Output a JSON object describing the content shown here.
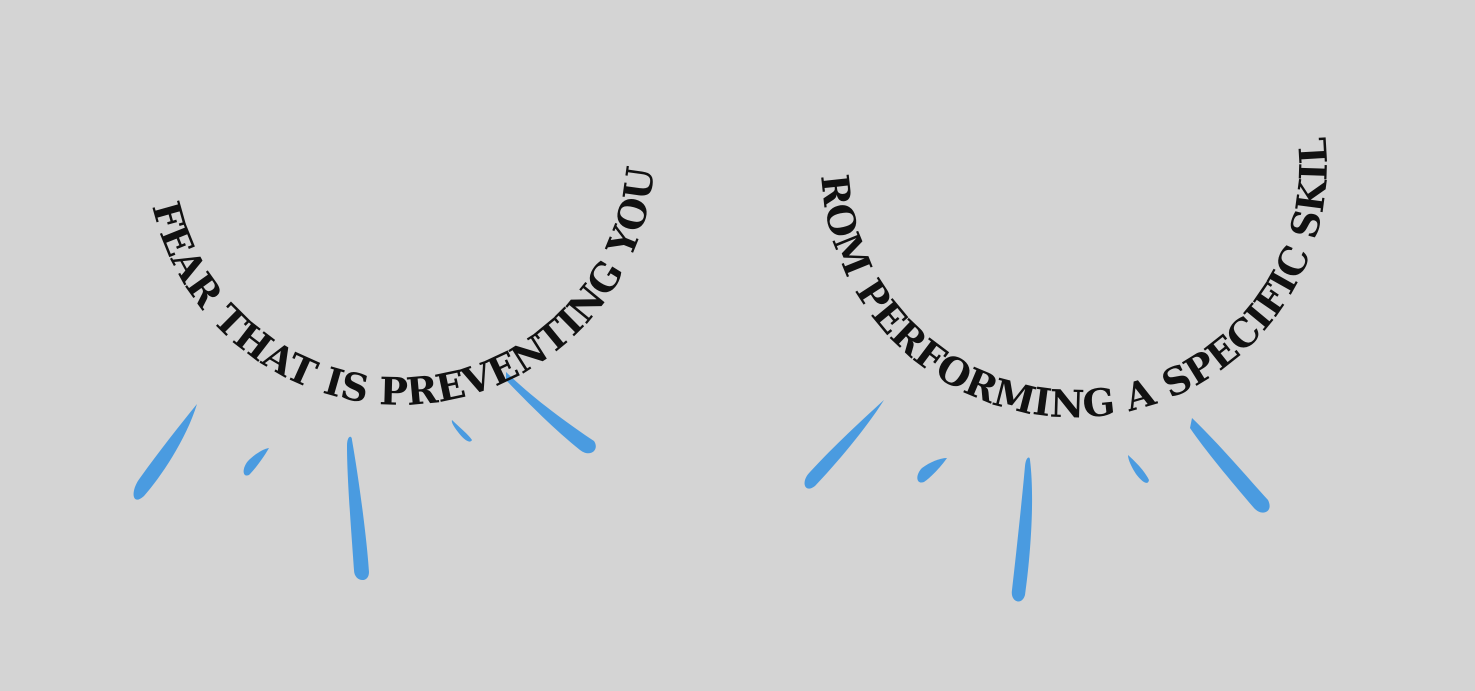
{
  "phrases": {
    "left": "A FEAR THAT IS PREVENTING YOU",
    "right": "FROM PERFORMING A SPECIFIC SKILL"
  },
  "colors": {
    "background": "#d4d4d4",
    "text": "#111111",
    "tears": "#4a9be0"
  },
  "icons": {
    "lash": "tear-drop-icon"
  }
}
